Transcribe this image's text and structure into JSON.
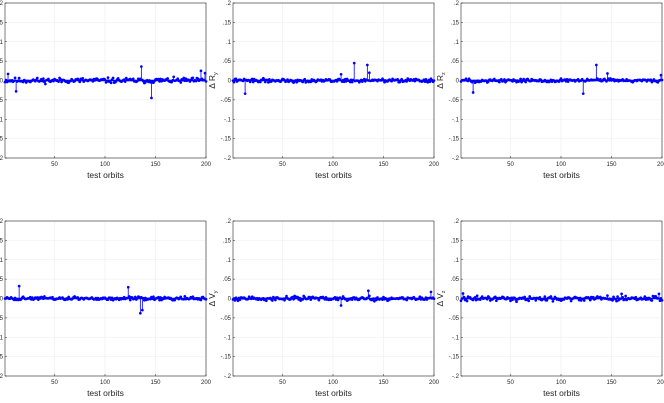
{
  "colors": {
    "series": "#0000ff",
    "grid": "#ececec",
    "axis": "#262626",
    "background": "#ffffff"
  },
  "chart_data": [
    {
      "type": "scatter",
      "title": "",
      "xlabel": "test orbits",
      "ylabel_main": "Δ R",
      "ylabel_sub": "x",
      "xlim": [
        1,
        200
      ],
      "ylim": [
        -0.2,
        0.2
      ],
      "grid": true,
      "style": "stem",
      "x_ticks": [
        50,
        100,
        150,
        200
      ],
      "y_ticks": [
        -0.2,
        -0.15,
        -0.1,
        -0.05,
        0,
        0.05,
        0.1,
        0.15,
        0.2
      ],
      "spikes": [
        [
          4,
          0.017
        ],
        [
          12,
          -0.028
        ],
        [
          136,
          0.036
        ],
        [
          146,
          -0.045
        ],
        [
          195,
          0.025
        ],
        [
          199,
          0.019
        ]
      ],
      "noise_amplitude": 0.01,
      "seed": 11
    },
    {
      "type": "scatter",
      "title": "",
      "xlabel": "test orbits",
      "ylabel_main": "Δ R",
      "ylabel_sub": "y",
      "xlim": [
        1,
        200
      ],
      "ylim": [
        -0.2,
        0.2
      ],
      "grid": true,
      "style": "stem",
      "x_ticks": [
        50,
        100,
        150,
        200
      ],
      "y_ticks": [
        -0.2,
        -0.15,
        -0.1,
        -0.05,
        0,
        0.05,
        0.1,
        0.15,
        0.2
      ],
      "spikes": [
        [
          13,
          -0.034
        ],
        [
          108,
          0.016
        ],
        [
          121,
          0.045
        ],
        [
          134,
          0.04
        ],
        [
          136,
          0.02
        ]
      ],
      "noise_amplitude": 0.007,
      "seed": 22
    },
    {
      "type": "scatter",
      "title": "",
      "xlabel": "test orbits",
      "ylabel_main": "Δ R",
      "ylabel_sub": "z",
      "xlim": [
        1,
        200
      ],
      "ylim": [
        -0.2,
        0.2
      ],
      "grid": true,
      "style": "stem",
      "x_ticks": [
        50,
        100,
        150,
        200
      ],
      "y_ticks": [
        -0.2,
        -0.15,
        -0.1,
        -0.05,
        0,
        0.05,
        0.1,
        0.15,
        0.2
      ],
      "spikes": [
        [
          13,
          -0.031
        ],
        [
          122,
          -0.034
        ],
        [
          135,
          0.04
        ],
        [
          146,
          0.018
        ],
        [
          199,
          0.014
        ]
      ],
      "noise_amplitude": 0.007,
      "seed": 33
    },
    {
      "type": "scatter",
      "title": "",
      "xlabel": "test orbits",
      "ylabel_main": "Δ V",
      "ylabel_sub": "x",
      "xlim": [
        1,
        200
      ],
      "ylim": [
        -0.2,
        0.2
      ],
      "grid": true,
      "style": "stem",
      "x_ticks": [
        50,
        100,
        150,
        200
      ],
      "y_ticks": [
        -0.2,
        -0.15,
        -0.1,
        -0.05,
        0,
        0.05,
        0.1,
        0.15,
        0.2
      ],
      "spikes": [
        [
          15,
          0.032
        ],
        [
          123,
          0.029
        ],
        [
          135,
          -0.038
        ],
        [
          137,
          -0.03
        ]
      ],
      "noise_amplitude": 0.007,
      "seed": 44
    },
    {
      "type": "scatter",
      "title": "",
      "xlabel": "test orbits",
      "ylabel_main": "Δ V",
      "ylabel_sub": "y",
      "xlim": [
        1,
        200
      ],
      "ylim": [
        -0.2,
        0.2
      ],
      "grid": true,
      "style": "stem",
      "x_ticks": [
        50,
        100,
        150,
        200
      ],
      "y_ticks": [
        -0.2,
        -0.15,
        -0.1,
        -0.05,
        0,
        0.05,
        0.1,
        0.15,
        0.2
      ],
      "spikes": [
        [
          108,
          -0.018
        ],
        [
          135,
          0.02
        ],
        [
          197,
          0.017
        ]
      ],
      "noise_amplitude": 0.008,
      "seed": 55
    },
    {
      "type": "scatter",
      "title": "",
      "xlabel": "test orbits",
      "ylabel_main": "Δ V",
      "ylabel_sub": "z",
      "xlim": [
        1,
        200
      ],
      "ylim": [
        -0.2,
        0.2
      ],
      "grid": true,
      "style": "stem",
      "x_ticks": [
        50,
        100,
        150,
        200
      ],
      "y_ticks": [
        -0.2,
        -0.15,
        -0.1,
        -0.05,
        0,
        0.05,
        0.1,
        0.15,
        0.2
      ],
      "spikes": [
        [
          3,
          0.013
        ],
        [
          160,
          0.012
        ],
        [
          197,
          0.012
        ]
      ],
      "noise_amplitude": 0.009,
      "seed": 66
    }
  ]
}
